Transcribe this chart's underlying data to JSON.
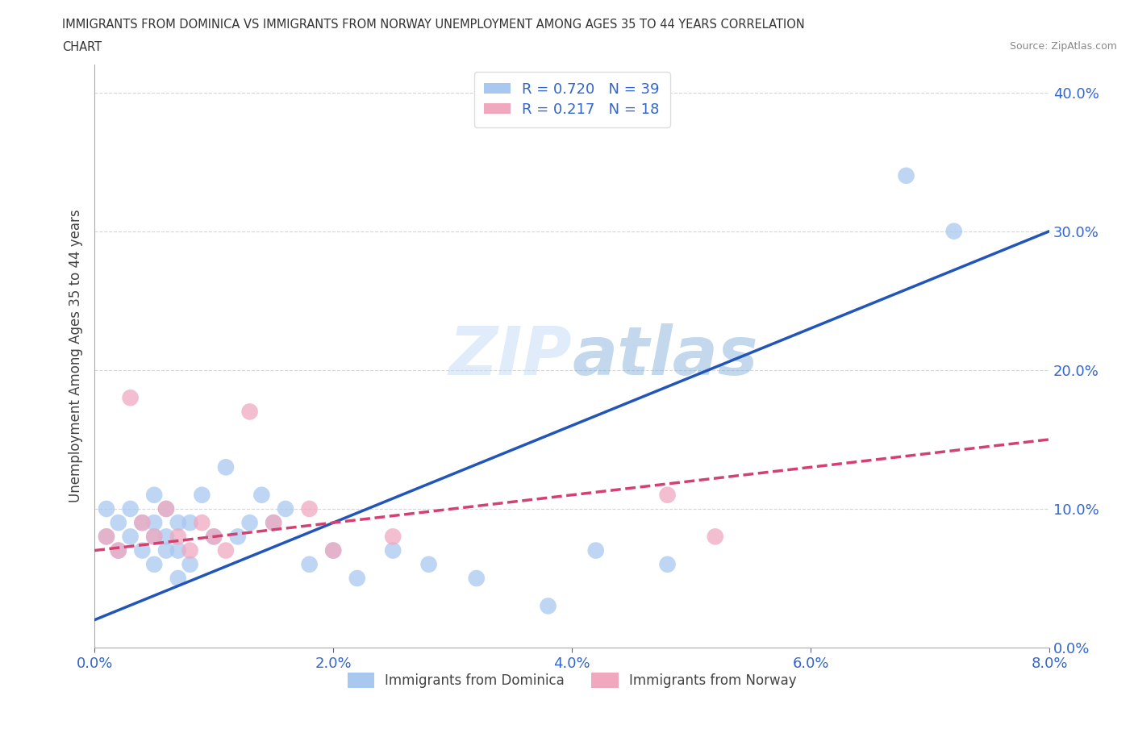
{
  "title_line1": "IMMIGRANTS FROM DOMINICA VS IMMIGRANTS FROM NORWAY UNEMPLOYMENT AMONG AGES 35 TO 44 YEARS CORRELATION",
  "title_line2": "CHART",
  "source": "Source: ZipAtlas.com",
  "ylabel": "Unemployment Among Ages 35 to 44 years",
  "dominica_R": 0.72,
  "dominica_N": 39,
  "norway_R": 0.217,
  "norway_N": 18,
  "xlim": [
    0.0,
    0.08
  ],
  "ylim": [
    0.0,
    0.42
  ],
  "xticks": [
    0.0,
    0.02,
    0.04,
    0.06,
    0.08
  ],
  "yticks": [
    0.0,
    0.1,
    0.2,
    0.3,
    0.4
  ],
  "dominica_color": "#a8c8f0",
  "dominica_line_color": "#2255bb",
  "norway_color": "#f0a8bf",
  "norway_line_color": "#d44070",
  "tick_color": "#3366cc",
  "background_color": "#ffffff",
  "dom_x": [
    0.001,
    0.001,
    0.002,
    0.002,
    0.003,
    0.003,
    0.004,
    0.004,
    0.005,
    0.005,
    0.005,
    0.005,
    0.006,
    0.006,
    0.006,
    0.007,
    0.007,
    0.007,
    0.008,
    0.008,
    0.009,
    0.01,
    0.011,
    0.012,
    0.013,
    0.014,
    0.015,
    0.016,
    0.018,
    0.02,
    0.022,
    0.025,
    0.028,
    0.032,
    0.038,
    0.042,
    0.048,
    0.068,
    0.072
  ],
  "dom_y": [
    0.08,
    0.1,
    0.07,
    0.09,
    0.08,
    0.1,
    0.07,
    0.09,
    0.06,
    0.08,
    0.09,
    0.11,
    0.07,
    0.08,
    0.1,
    0.05,
    0.07,
    0.09,
    0.06,
    0.09,
    0.11,
    0.08,
    0.13,
    0.08,
    0.09,
    0.11,
    0.09,
    0.1,
    0.06,
    0.07,
    0.05,
    0.07,
    0.06,
    0.05,
    0.03,
    0.07,
    0.06,
    0.34,
    0.3
  ],
  "nor_x": [
    0.001,
    0.002,
    0.003,
    0.004,
    0.005,
    0.006,
    0.007,
    0.008,
    0.009,
    0.01,
    0.011,
    0.013,
    0.015,
    0.018,
    0.02,
    0.025,
    0.048,
    0.052
  ],
  "nor_y": [
    0.08,
    0.07,
    0.18,
    0.09,
    0.08,
    0.1,
    0.08,
    0.07,
    0.09,
    0.08,
    0.07,
    0.17,
    0.09,
    0.1,
    0.07,
    0.08,
    0.11,
    0.08
  ],
  "dom_line_x0": 0.0,
  "dom_line_y0": 0.02,
  "dom_line_x1": 0.08,
  "dom_line_y1": 0.3,
  "nor_line_x0": 0.0,
  "nor_line_y0": 0.07,
  "nor_line_x1": 0.08,
  "nor_line_y1": 0.15
}
